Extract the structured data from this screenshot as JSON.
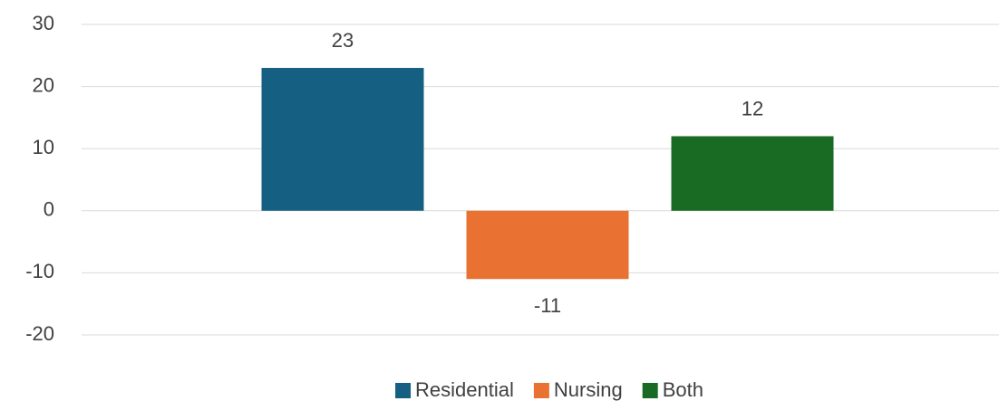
{
  "chart_data": {
    "type": "bar",
    "categories": [
      null
    ],
    "series": [
      {
        "name": "Residential",
        "color": "#156082",
        "values": [
          23
        ]
      },
      {
        "name": "Nursing",
        "color": "#e97132",
        "values": [
          -11
        ]
      },
      {
        "name": "Both",
        "color": "#196b24",
        "values": [
          12
        ]
      }
    ],
    "ylim": [
      -20,
      30
    ],
    "yticks": [
      -20,
      -10,
      0,
      10,
      20,
      30
    ],
    "grid": true,
    "legend": "bottom"
  }
}
